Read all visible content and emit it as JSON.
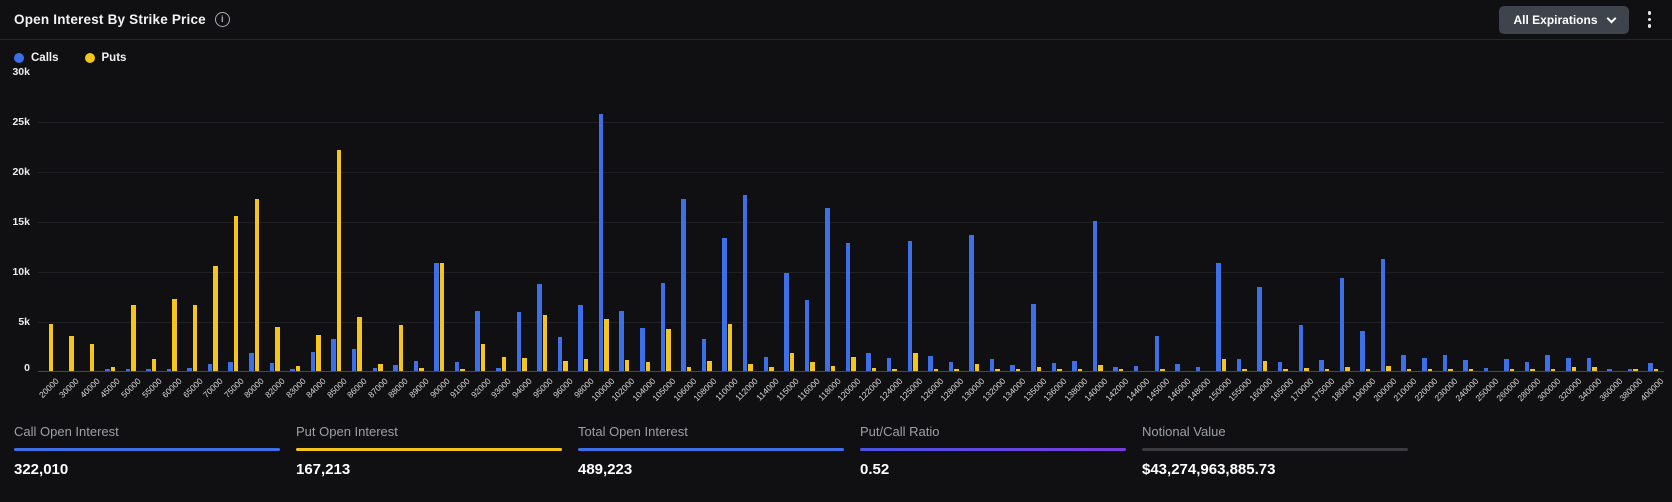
{
  "header": {
    "title": "Open Interest By Strike Price",
    "expiration_filter": "All Expirations"
  },
  "icons": {
    "info_glyph": "i",
    "info-icon": "circled-i",
    "chevron-down-icon": "css-chevron",
    "kebab-menu-icon": "three-vertical-dots"
  },
  "colors": {
    "background": "#101013",
    "calls_blue": "#3d70e8",
    "puts_yellow": "#f5c51b",
    "put_call_ratio_purple": "#7b3be0",
    "notional_gray": "#3a3b3f"
  },
  "chart_data": {
    "type": "bar",
    "title": "Open Interest By Strike Price",
    "xlabel": "Strike Price",
    "ylabel": "Open Interest",
    "ylim": [
      0,
      30000
    ],
    "grid": true,
    "legend_position": "top-left",
    "yticks": [
      {
        "label": "30k",
        "value": 30000
      },
      {
        "label": "25k",
        "value": 25000
      },
      {
        "label": "20k",
        "value": 20000
      },
      {
        "label": "15k",
        "value": 15000
      },
      {
        "label": "10k",
        "value": 10000
      },
      {
        "label": "5k",
        "value": 5000
      },
      {
        "label": "0",
        "value": 0
      }
    ],
    "categories": [
      "20000",
      "30000",
      "40000",
      "45000",
      "50000",
      "55000",
      "60000",
      "65000",
      "70000",
      "75000",
      "80000",
      "82000",
      "83000",
      "84000",
      "85000",
      "86000",
      "87000",
      "88000",
      "89000",
      "90000",
      "91000",
      "92000",
      "93000",
      "94000",
      "95000",
      "96000",
      "98000",
      "100000",
      "102000",
      "104000",
      "105000",
      "106000",
      "108000",
      "110000",
      "112000",
      "114000",
      "115000",
      "116000",
      "118000",
      "120000",
      "122000",
      "124000",
      "125000",
      "126000",
      "128000",
      "130000",
      "132000",
      "134000",
      "135000",
      "136000",
      "138000",
      "140000",
      "142000",
      "144000",
      "145000",
      "146000",
      "148000",
      "150000",
      "155000",
      "160000",
      "165000",
      "170000",
      "175000",
      "180000",
      "190000",
      "200000",
      "210000",
      "220000",
      "230000",
      "240000",
      "250000",
      "260000",
      "280000",
      "300000",
      "320000",
      "340000",
      "360000",
      "380000",
      "400000"
    ],
    "series": [
      {
        "name": "Calls",
        "color": "#3d70e8",
        "values": [
          0,
          0,
          0,
          50,
          150,
          50,
          200,
          300,
          700,
          900,
          1800,
          800,
          200,
          1900,
          3200,
          2200,
          300,
          600,
          1000,
          10800,
          900,
          6000,
          300,
          5900,
          8700,
          3400,
          6600,
          25800,
          6000,
          4300,
          8800,
          17300,
          3200,
          13300,
          17700,
          1400,
          9800,
          7100,
          16400,
          12800,
          1800,
          1300,
          13000,
          1500,
          900,
          13600,
          1200,
          600,
          6700,
          800,
          1000,
          15100,
          400,
          500,
          3500,
          700,
          400,
          10800,
          1200,
          8400,
          900,
          4600,
          1100,
          9300,
          4000,
          11200,
          1600,
          1300,
          1600,
          1100,
          300,
          1200,
          900,
          1600,
          1300,
          1300,
          200,
          200,
          800
        ]
      },
      {
        "name": "Puts",
        "color": "#f5c51b",
        "values": [
          4700,
          3500,
          2700,
          400,
          6600,
          1200,
          7200,
          6600,
          10500,
          15600,
          17300,
          4400,
          500,
          3600,
          22200,
          5400,
          700,
          4600,
          300,
          10800,
          200,
          2700,
          1400,
          1300,
          5600,
          1000,
          1200,
          5200,
          1100,
          900,
          4200,
          400,
          1000,
          4700,
          700,
          400,
          1800,
          900,
          500,
          1400,
          300,
          200,
          1800,
          200,
          100,
          700,
          100,
          100,
          400,
          100,
          100,
          600,
          100,
          0,
          200,
          0,
          0,
          1200,
          100,
          1000,
          100,
          300,
          100,
          400,
          200,
          500,
          100,
          100,
          100,
          100,
          0,
          100,
          100,
          100,
          400,
          400,
          0,
          100,
          100
        ]
      }
    ]
  },
  "stats": {
    "items": [
      {
        "label": "Call Open Interest",
        "value": "322,010",
        "color": "#3d70e8"
      },
      {
        "label": "Put Open Interest",
        "value": "167,213",
        "color": "#f5c51b"
      },
      {
        "label": "Total Open Interest",
        "value": "489,223",
        "color": "#3d70e8"
      },
      {
        "label": "Put/Call Ratio",
        "value": "0.52",
        "color": "#7b3be0"
      },
      {
        "label": "Notional Value",
        "value": "$43,274,963,885.73",
        "color": "#3a3b3f"
      }
    ]
  }
}
